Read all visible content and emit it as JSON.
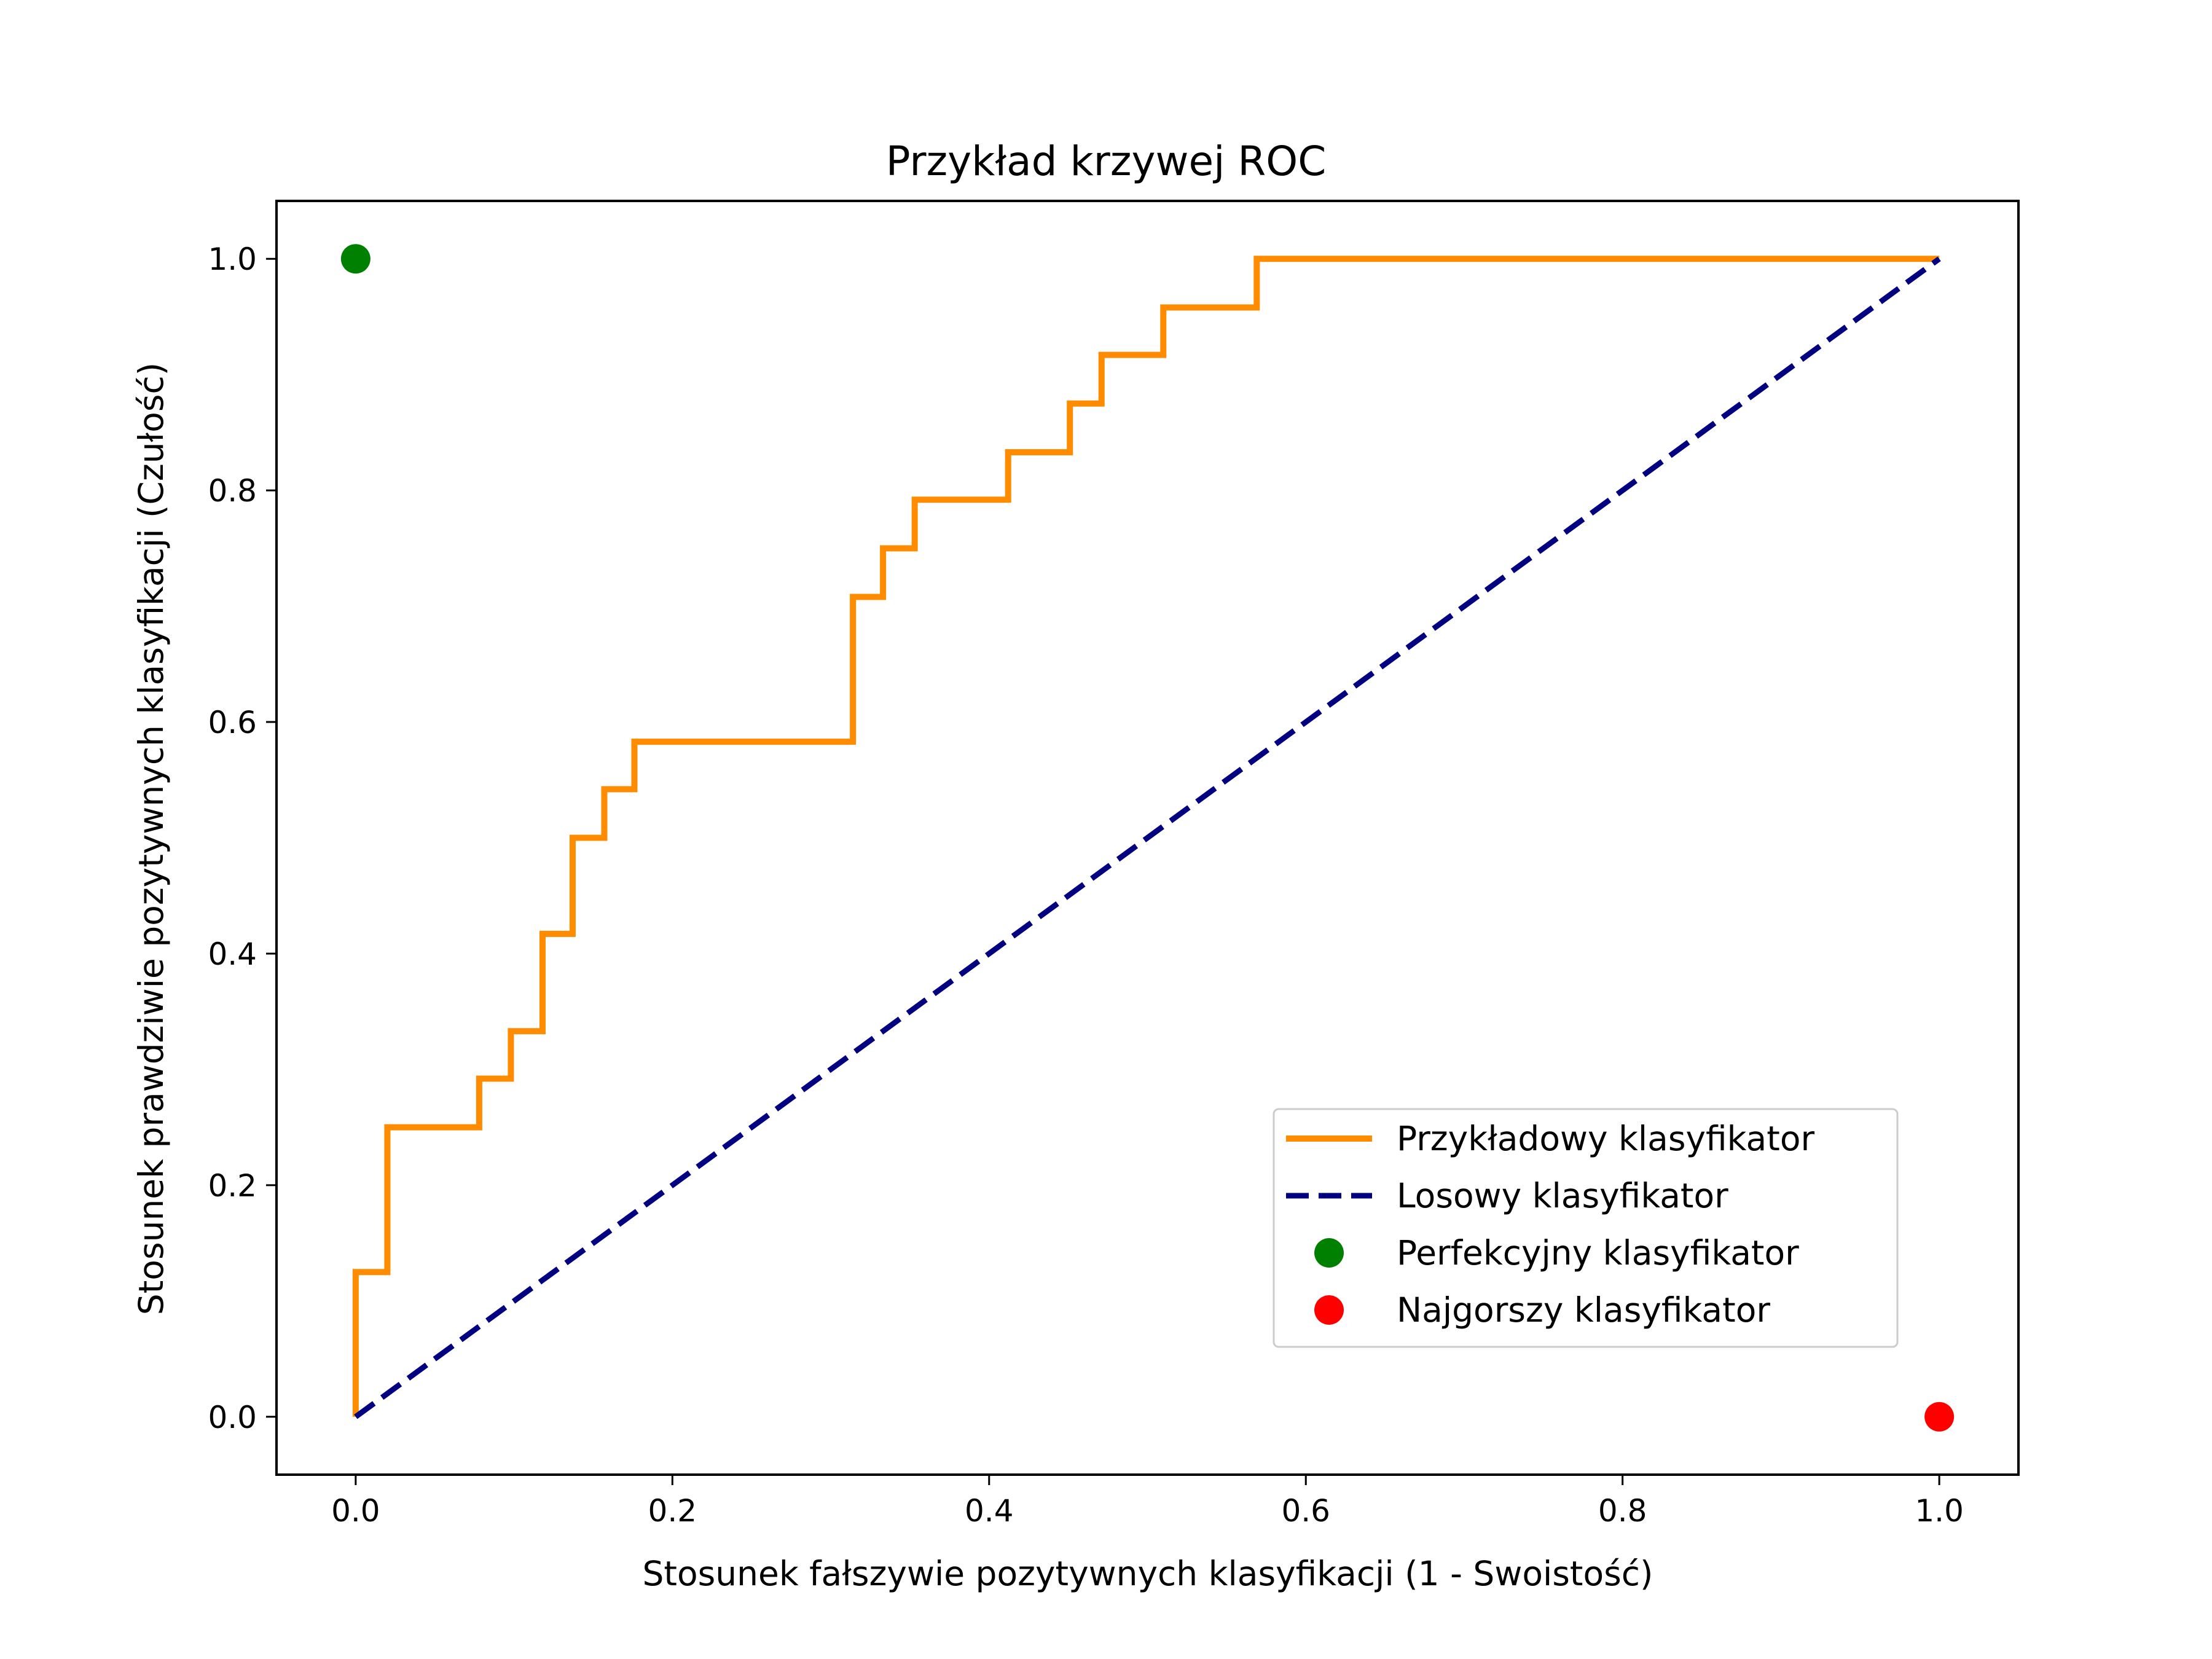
{
  "chart_data": {
    "type": "line",
    "title": "Przykład krzywej ROC",
    "xlabel": "Stosunek fałszywie pozytywnych klasyfikacji (1 - Swoistość)",
    "ylabel": "Stosunek prawdziwie pozytywnych klasyfikacji (Czułość)",
    "xlim": [
      -0.05,
      1.05
    ],
    "ylim": [
      -0.05,
      1.05
    ],
    "xticks": [
      0.0,
      0.2,
      0.4,
      0.6,
      0.8,
      1.0
    ],
    "yticks": [
      0.0,
      0.2,
      0.4,
      0.6,
      0.8,
      1.0
    ],
    "xtick_labels": [
      "0.0",
      "0.2",
      "0.4",
      "0.6",
      "0.8",
      "1.0"
    ],
    "ytick_labels": [
      "0.0",
      "0.2",
      "0.4",
      "0.6",
      "0.8",
      "1.0"
    ],
    "grid": false,
    "legend_position": "lower-right",
    "series": [
      {
        "name": "Przykładowy klasyfikator",
        "style": "solid",
        "color": "#ff8c00",
        "x": [
          0.0,
          0.0,
          0.02,
          0.02,
          0.078,
          0.078,
          0.098,
          0.098,
          0.118,
          0.118,
          0.137,
          0.137,
          0.157,
          0.157,
          0.176,
          0.176,
          0.314,
          0.314,
          0.333,
          0.333,
          0.353,
          0.353,
          0.412,
          0.412,
          0.451,
          0.451,
          0.471,
          0.471,
          0.51,
          0.51,
          0.569,
          0.569,
          1.0
        ],
        "y": [
          0.0,
          0.125,
          0.125,
          0.25,
          0.25,
          0.292,
          0.292,
          0.333,
          0.333,
          0.417,
          0.417,
          0.5,
          0.5,
          0.542,
          0.542,
          0.583,
          0.583,
          0.708,
          0.708,
          0.75,
          0.75,
          0.792,
          0.792,
          0.833,
          0.833,
          0.875,
          0.875,
          0.917,
          0.917,
          0.958,
          0.958,
          1.0,
          1.0
        ]
      },
      {
        "name": "Losowy klasyfikator",
        "style": "dashed",
        "color": "#000080",
        "x": [
          0.0,
          1.0
        ],
        "y": [
          0.0,
          1.0
        ]
      },
      {
        "name": "Perfekcyjny klasyfikator",
        "style": "point",
        "color": "#008000",
        "x": [
          0.0
        ],
        "y": [
          1.0
        ]
      },
      {
        "name": "Najgorszy klasyfikator",
        "style": "point",
        "color": "#ff0000",
        "x": [
          1.0
        ],
        "y": [
          0.0
        ]
      }
    ]
  }
}
